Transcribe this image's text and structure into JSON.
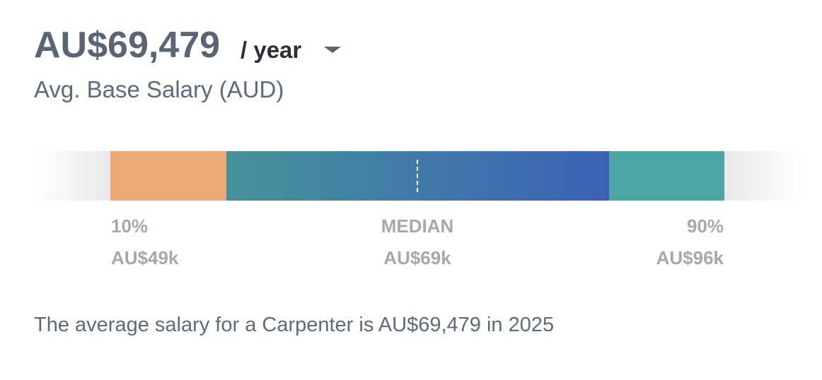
{
  "header": {
    "amount": "AU$69,479",
    "period": "/ year",
    "subtitle": "Avg. Base Salary (AUD)"
  },
  "range": {
    "labels": [
      {
        "percentile": "10%",
        "value": "AU$49k"
      },
      {
        "percentile": "MEDIAN",
        "value": "AU$69k"
      },
      {
        "percentile": "90%",
        "value": "AU$96k"
      }
    ]
  },
  "summary": "The average salary for a Carpenter is AU$69,479 in 2025"
}
